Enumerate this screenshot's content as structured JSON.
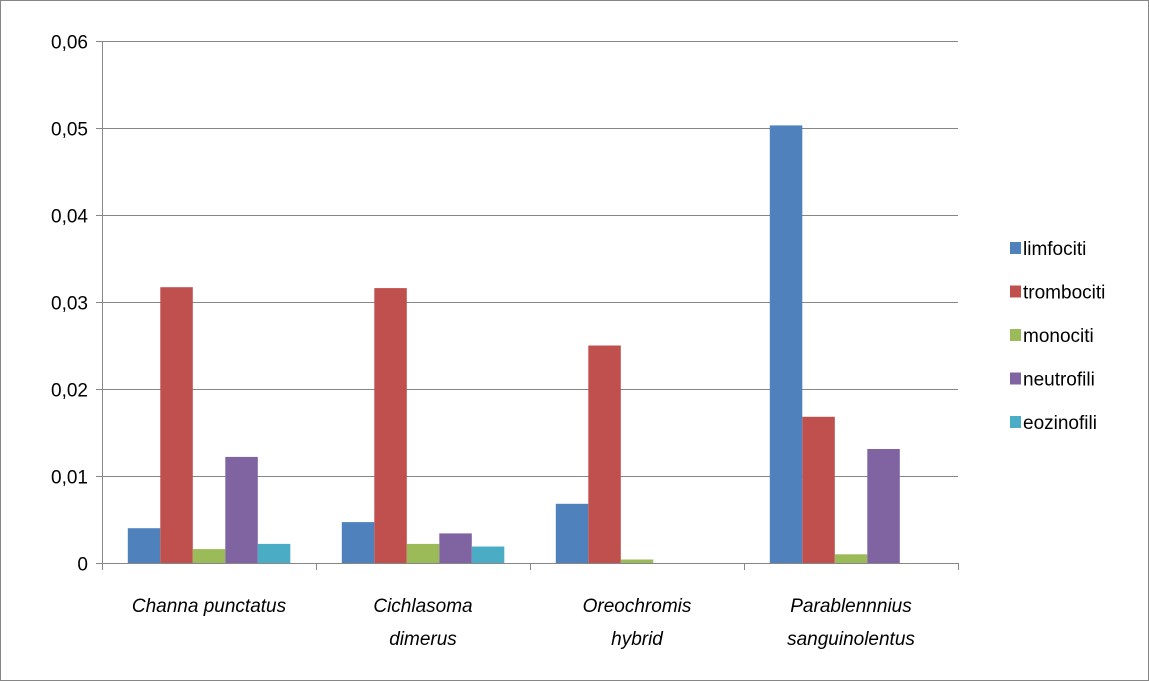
{
  "chart_data": {
    "type": "bar",
    "categories": [
      [
        "Channa punctatus"
      ],
      [
        "Cichlasoma",
        "dimerus"
      ],
      [
        "Oreochromis",
        "hybrid"
      ],
      [
        "Parablennnius",
        "sanguinolentus"
      ]
    ],
    "series": [
      {
        "name": "limfociti",
        "color": "#4f81bd",
        "values": [
          0.004,
          0.0047,
          0.0068,
          0.0503
        ]
      },
      {
        "name": "trombociti",
        "color": "#c0504d",
        "values": [
          0.0317,
          0.0316,
          0.025,
          0.0168
        ]
      },
      {
        "name": "monociti",
        "color": "#9bbb59",
        "values": [
          0.0016,
          0.0022,
          0.0004,
          0.001
        ]
      },
      {
        "name": "neutrofili",
        "color": "#8064a2",
        "values": [
          0.0122,
          0.0034,
          0,
          0.0131
        ]
      },
      {
        "name": "eozinofili",
        "color": "#4bacc6",
        "values": [
          0.0022,
          0.0019,
          0,
          0
        ]
      }
    ],
    "ylim": [
      0,
      0.06
    ],
    "yticks": [
      0,
      0.01,
      0.02,
      0.03,
      0.04,
      0.05,
      0.06
    ],
    "ytick_labels": [
      "0",
      "0,01",
      "0,02",
      "0,03",
      "0,04",
      "0,05",
      "0,06"
    ],
    "grid": true,
    "legend_position": "right"
  }
}
